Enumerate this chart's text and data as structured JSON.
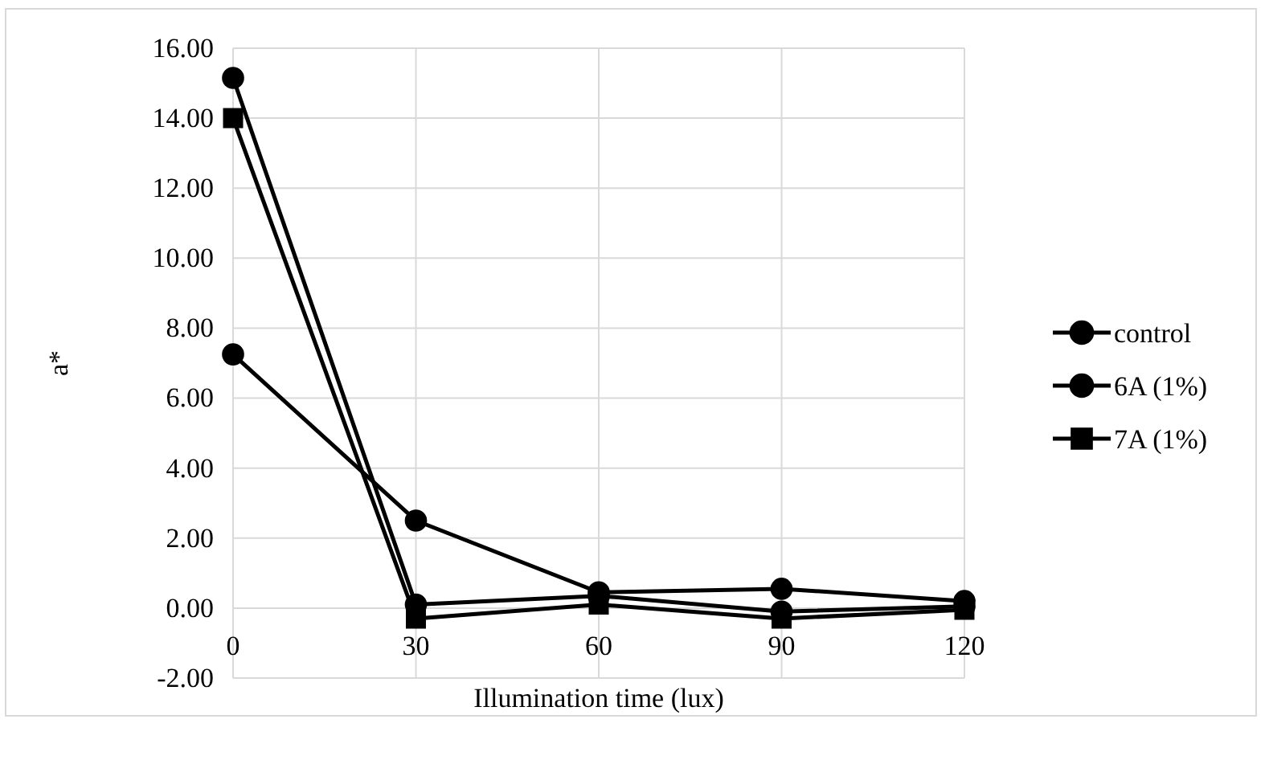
{
  "chart_data": {
    "type": "line",
    "xlabel": "Illumination time (lux)",
    "ylabel": "a*",
    "x": [
      0,
      30,
      60,
      90,
      120
    ],
    "xlim": [
      0,
      120
    ],
    "xticks": [
      0,
      30,
      60,
      90,
      120
    ],
    "ylim": [
      -2,
      16
    ],
    "yticks": [
      {
        "value": -2,
        "label": "-2.00"
      },
      {
        "value": 0,
        "label": "0.00"
      },
      {
        "value": 2,
        "label": "2.00"
      },
      {
        "value": 4,
        "label": "4.00"
      },
      {
        "value": 6,
        "label": "6.00"
      },
      {
        "value": 8,
        "label": "8.00"
      },
      {
        "value": 10,
        "label": "10.00"
      },
      {
        "value": 12,
        "label": "12.00"
      },
      {
        "value": 14,
        "label": "14.00"
      },
      {
        "value": 16,
        "label": "16.00"
      }
    ],
    "grid": true,
    "legend": "right",
    "line_style": "solid",
    "series": [
      {
        "name": "control",
        "color": "#000000",
        "marker": "circle",
        "values": [
          7.25,
          2.5,
          0.45,
          0.55,
          0.2
        ]
      },
      {
        "name": "6A (1%)",
        "color": "#000000",
        "marker": "circle",
        "values": [
          15.15,
          0.1,
          0.35,
          -0.1,
          0.05
        ]
      },
      {
        "name": "7A (1%)",
        "color": "#000000",
        "marker": "square",
        "values": [
          14.0,
          -0.3,
          0.1,
          -0.3,
          -0.05
        ]
      }
    ]
  }
}
